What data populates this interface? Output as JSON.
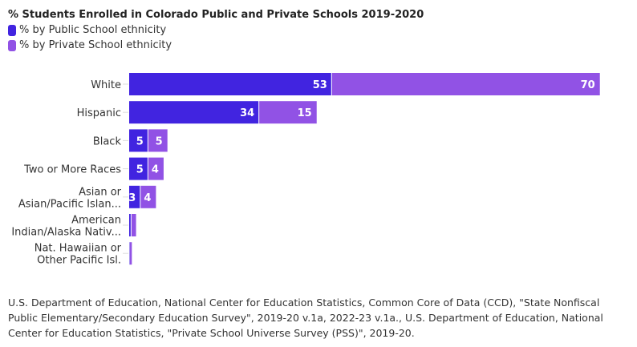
{
  "chart_data": {
    "type": "bar",
    "orientation": "horizontal",
    "stacked": true,
    "title": "% Students Enrolled in Colorado Public and Private Schools 2019-2020",
    "categories": [
      [
        "White"
      ],
      [
        "Hispanic"
      ],
      [
        "Black"
      ],
      [
        "Two or More Races"
      ],
      [
        "Asian or",
        "Asian/Pacific Islan..."
      ],
      [
        "American",
        "Indian/Alaska Nativ..."
      ],
      [
        "Nat. Hawaiian or",
        "Other Pacific Isl."
      ]
    ],
    "series": [
      {
        "name": "% by Public School ethnicity",
        "color": "#4124e0",
        "values": [
          53,
          34,
          5,
          5,
          3,
          0.6,
          0.2
        ]
      },
      {
        "name": "% by Private School ethnicity",
        "color": "#9152e5",
        "values": [
          70,
          15,
          5,
          4,
          4,
          1.2,
          0.5
        ]
      }
    ],
    "data_labels_min": 3,
    "grid": false,
    "legend_placement": "top-left",
    "source": "U.S. Department of Education, National Center for Education Statistics, Common Core of Data (CCD), \"State Nonfiscal Public Elementary/Secondary Education Survey\", 2019-20 v.1a, 2022-23 v.1a., U.S. Department of Education, National Center for Education Statistics, \"Private School Universe Survey (PSS)\", 2019-20."
  }
}
